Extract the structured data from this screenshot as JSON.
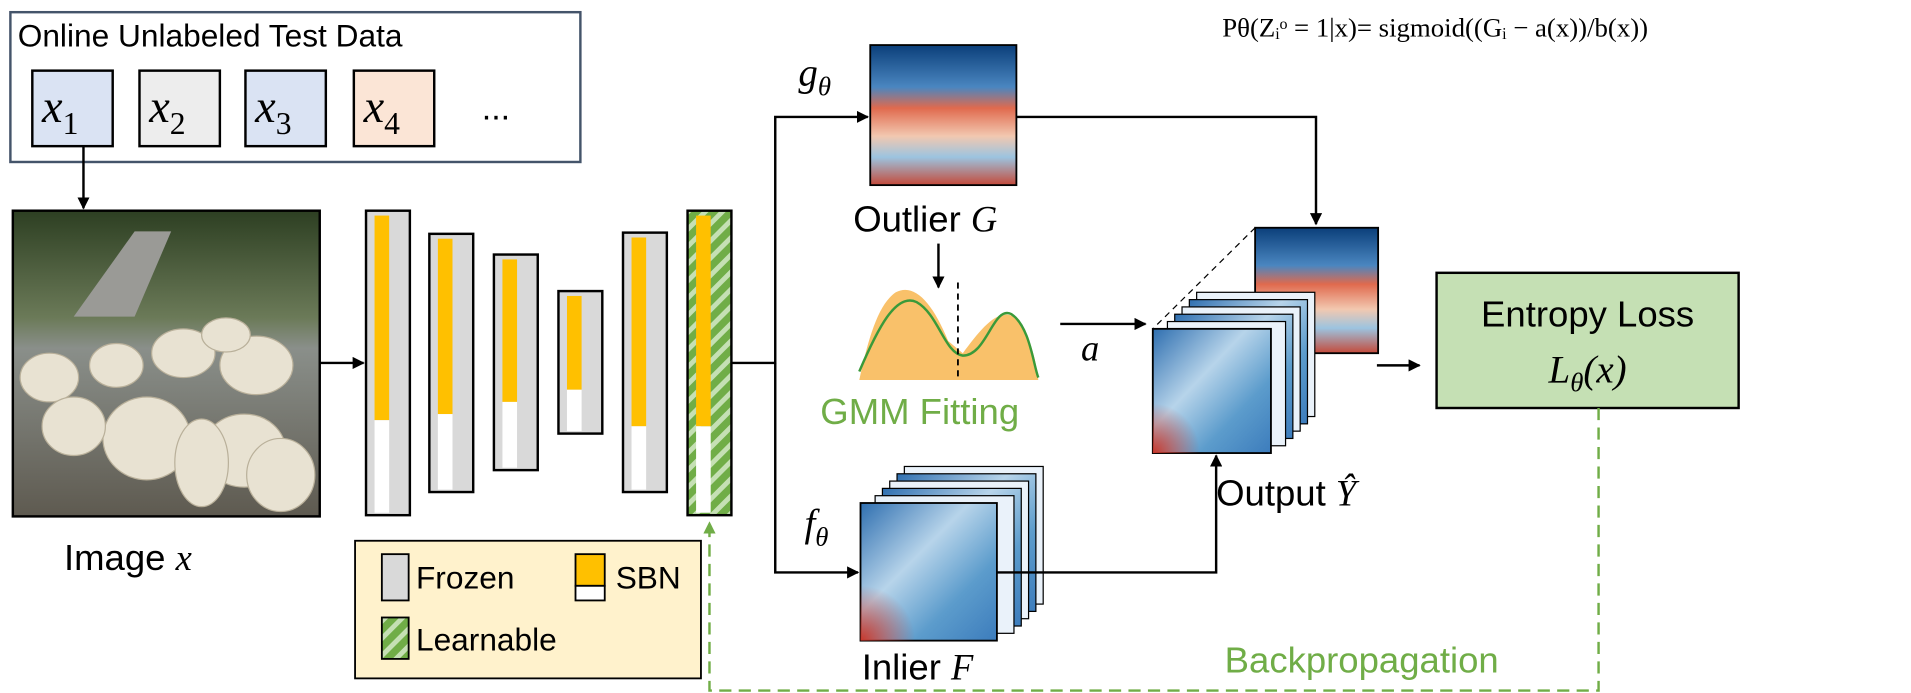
{
  "input_box": {
    "title": "Online Unlabeled Test Data",
    "items": [
      {
        "base": "x",
        "sub": "1"
      },
      {
        "base": "x",
        "sub": "2"
      },
      {
        "base": "x",
        "sub": "3"
      },
      {
        "base": "x",
        "sub": "4"
      }
    ],
    "ellipsis": "..."
  },
  "image": {
    "label": "Image",
    "var": "x"
  },
  "outlier_head": {
    "base": "g",
    "sub": "θ"
  },
  "inlier_head": {
    "base": "f",
    "sub": "θ"
  },
  "outlier": {
    "label": "Outlier",
    "var": "G"
  },
  "inlier": {
    "label": "Inlier",
    "var": "F"
  },
  "gmm": {
    "label": "GMM Fitting"
  },
  "threshold": "a",
  "output": {
    "label": "Output",
    "var": "Ŷ"
  },
  "loss": {
    "title": "Entropy Loss",
    "base": "L",
    "sub": "θ",
    "arg": "(x)"
  },
  "backprop": "Backpropagation",
  "legend": {
    "frozen": "Frozen",
    "sbn": "SBN",
    "learnable": "Learnable"
  },
  "formula": "Pθ(Zᵢᵒ = 1|x)= sigmoid((Gᵢ − a(x))/b(x))"
}
